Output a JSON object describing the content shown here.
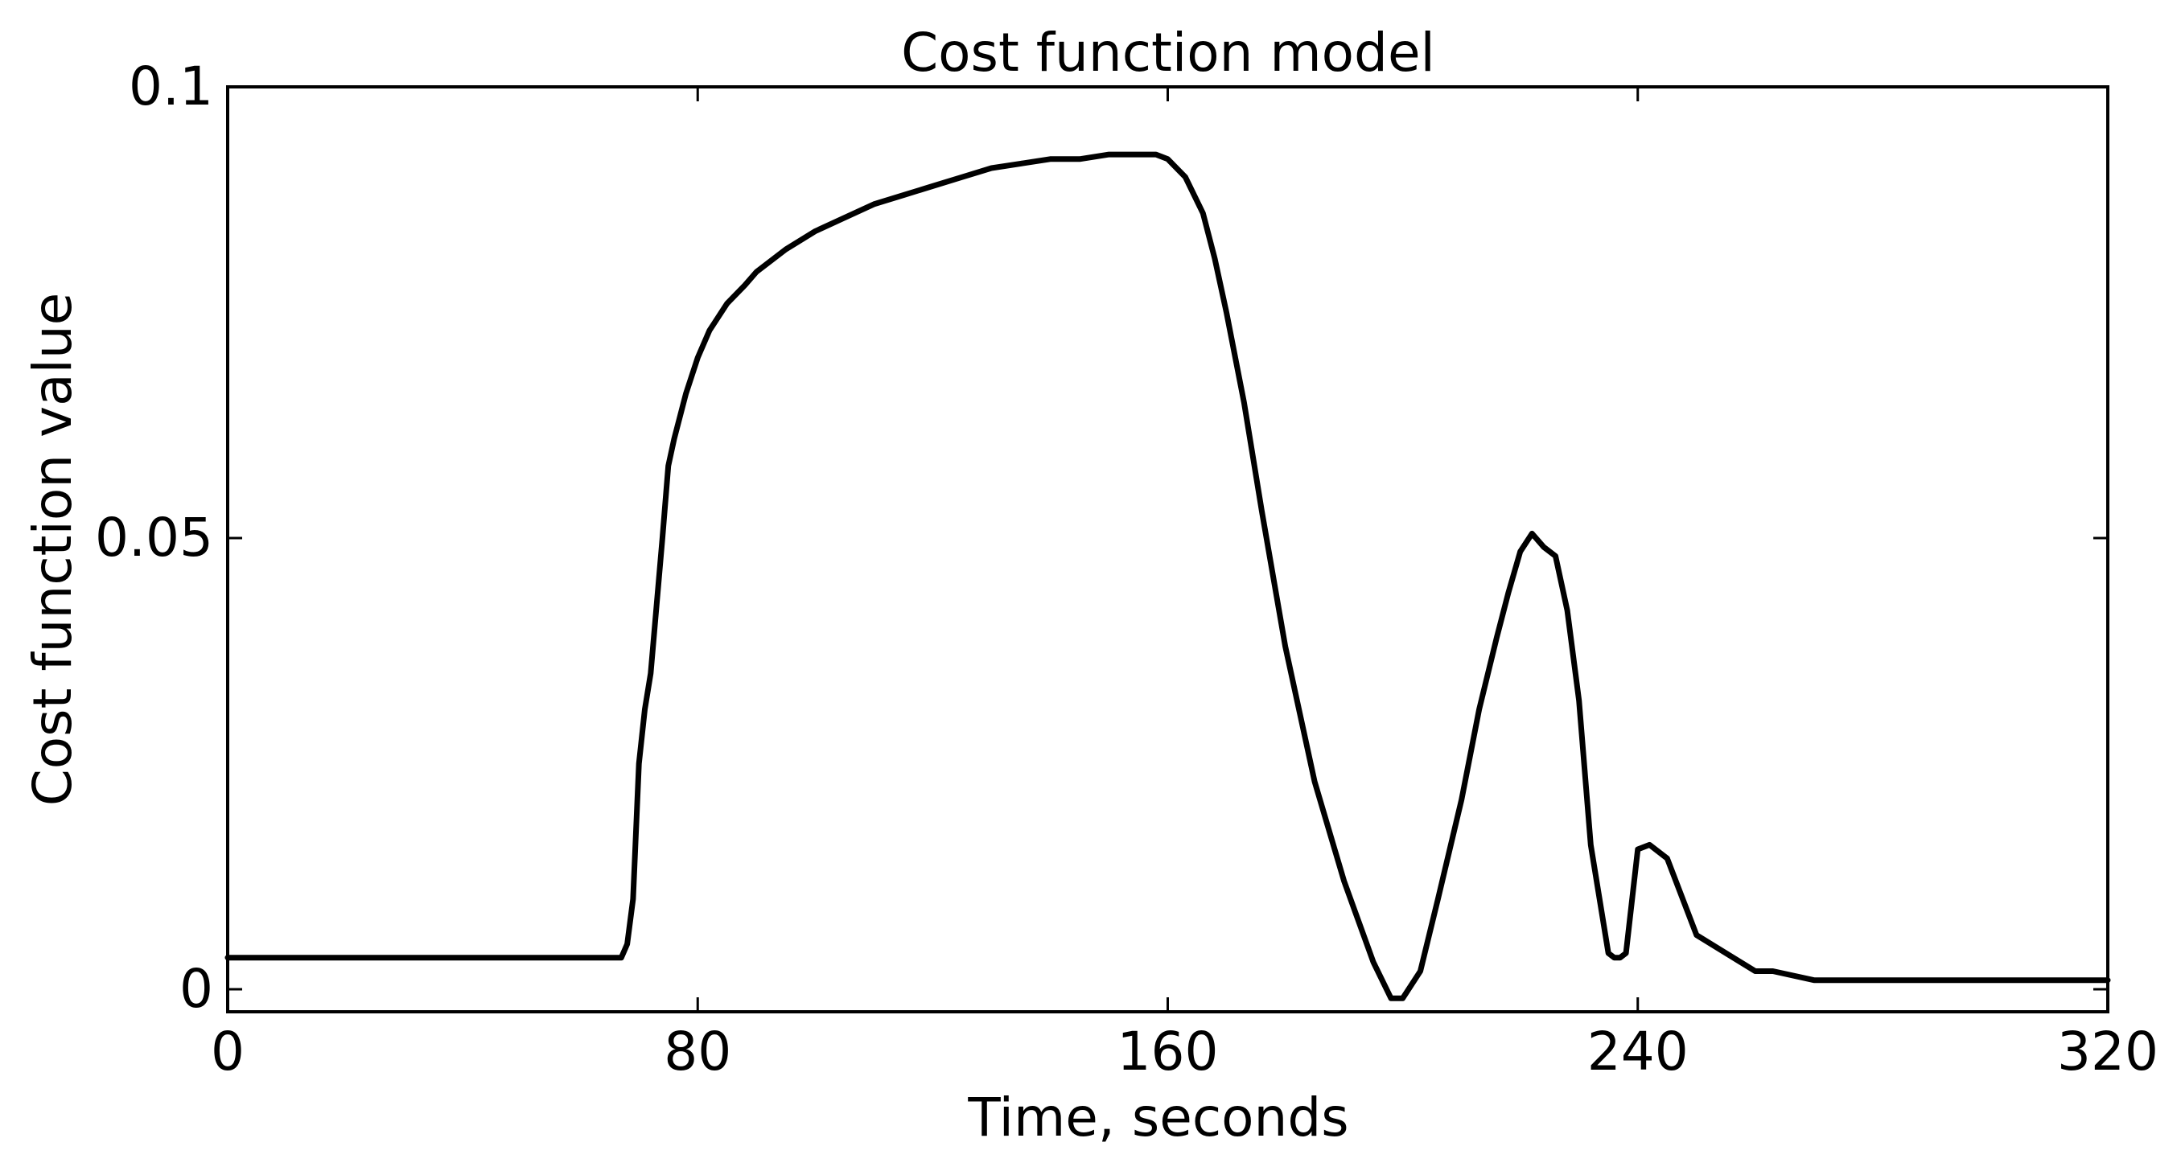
{
  "chart_data": {
    "type": "line",
    "title": "Cost function model",
    "xlabel": "Time, seconds",
    "ylabel": "Cost function value",
    "xlim": [
      0,
      320
    ],
    "ylim": [
      -0.0025,
      0.1
    ],
    "xticks": [
      0,
      80,
      160,
      240,
      320
    ],
    "xtick_labels": [
      "0",
      "80",
      "160",
      "240",
      "320"
    ],
    "yticks": [
      0,
      0.05,
      0.1
    ],
    "ytick_labels": [
      "0",
      "0.05",
      "0.1"
    ],
    "grid": false,
    "line_color": "#000000",
    "series": [
      {
        "x": [
          0,
          30,
          60,
          65,
          67,
          68,
          69,
          70,
          71,
          72,
          74,
          75,
          76,
          78,
          80,
          82,
          85,
          88,
          90,
          95,
          100,
          105,
          110,
          115,
          120,
          125,
          130,
          135,
          140,
          145,
          150,
          155,
          158,
          160,
          163,
          166,
          168,
          170,
          173,
          176,
          180,
          185,
          190,
          195,
          198,
          200,
          203,
          206,
          210,
          213,
          216,
          218,
          220,
          222,
          224,
          226,
          228,
          230,
          232,
          235,
          236,
          237,
          238,
          240,
          242,
          245,
          250,
          260,
          263,
          270,
          300,
          320
        ],
        "y": [
          0.0035,
          0.0035,
          0.0035,
          0.0035,
          0.0035,
          0.005,
          0.01,
          0.025,
          0.031,
          0.035,
          0.05,
          0.058,
          0.061,
          0.066,
          0.07,
          0.073,
          0.076,
          0.078,
          0.0795,
          0.082,
          0.084,
          0.0855,
          0.087,
          0.088,
          0.089,
          0.09,
          0.091,
          0.0915,
          0.092,
          0.092,
          0.0925,
          0.0925,
          0.0925,
          0.092,
          0.09,
          0.086,
          0.081,
          0.075,
          0.065,
          0.053,
          0.038,
          0.023,
          0.012,
          0.003,
          -0.001,
          -0.001,
          0.002,
          0.01,
          0.021,
          0.031,
          0.039,
          0.044,
          0.0485,
          0.0505,
          0.049,
          0.048,
          0.042,
          0.032,
          0.016,
          0.004,
          0.0035,
          0.0035,
          0.004,
          0.0155,
          0.016,
          0.0145,
          0.006,
          0.002,
          0.002,
          0.001,
          0.001,
          0.001
        ]
      }
    ]
  }
}
